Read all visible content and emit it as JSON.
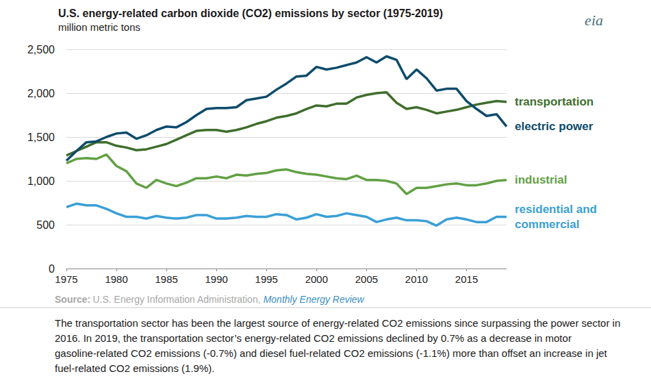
{
  "chart_data": {
    "type": "line",
    "title": "U.S. energy-related carbon dioxide (CO2) emissions by sector (1975-2019)",
    "subtitle": "million metric tons",
    "logo": "eia",
    "source_label": "Source:",
    "source": "U.S. Energy Information Administration,",
    "source_link": "Monthly Energy Review",
    "caption": "The transportation sector has been the largest source of energy-related CO2 emissions since surpassing the power sector in 2016. In 2019, the transportation sector’s energy-related CO2 emissions declined by 0.7% as a decrease in motor gasoline-related CO2 emissions (-0.7%) and diesel fuel-related CO2 emissions (-1.1%) more than offset an increase in jet fuel-related CO2 emissions (1.9%).",
    "x": [
      1975,
      1976,
      1977,
      1978,
      1979,
      1980,
      1981,
      1982,
      1983,
      1984,
      1985,
      1986,
      1987,
      1988,
      1989,
      1990,
      1991,
      1992,
      1993,
      1994,
      1995,
      1996,
      1997,
      1998,
      1999,
      2000,
      2001,
      2002,
      2003,
      2004,
      2005,
      2006,
      2007,
      2008,
      2009,
      2010,
      2011,
      2012,
      2013,
      2014,
      2015,
      2016,
      2017,
      2018,
      2019
    ],
    "series": [
      {
        "name": "transportation",
        "color": "#3f6e2c",
        "values": [
          1290,
          1340,
          1390,
          1440,
          1440,
          1400,
          1380,
          1350,
          1360,
          1390,
          1420,
          1470,
          1520,
          1570,
          1580,
          1580,
          1560,
          1580,
          1610,
          1650,
          1680,
          1720,
          1740,
          1770,
          1820,
          1860,
          1850,
          1880,
          1880,
          1950,
          1980,
          2000,
          2010,
          1890,
          1820,
          1840,
          1810,
          1770,
          1790,
          1810,
          1840,
          1870,
          1890,
          1910,
          1900
        ]
      },
      {
        "name": "electric power",
        "color": "#0d4b6c",
        "values": [
          1230,
          1340,
          1440,
          1450,
          1500,
          1540,
          1550,
          1480,
          1520,
          1580,
          1620,
          1610,
          1670,
          1750,
          1820,
          1830,
          1830,
          1840,
          1920,
          1940,
          1960,
          2040,
          2110,
          2190,
          2200,
          2300,
          2270,
          2290,
          2320,
          2350,
          2410,
          2350,
          2420,
          2380,
          2160,
          2270,
          2170,
          2030,
          2050,
          2050,
          1910,
          1820,
          1740,
          1760,
          1620
        ]
      },
      {
        "name": "industrial",
        "color": "#62a044",
        "values": [
          1200,
          1250,
          1260,
          1250,
          1300,
          1170,
          1110,
          970,
          920,
          1010,
          970,
          940,
          980,
          1030,
          1030,
          1050,
          1030,
          1070,
          1060,
          1080,
          1090,
          1120,
          1130,
          1100,
          1080,
          1070,
          1050,
          1030,
          1020,
          1060,
          1010,
          1010,
          1000,
          970,
          850,
          920,
          920,
          940,
          960,
          970,
          950,
          950,
          970,
          1000,
          1010
        ]
      },
      {
        "name": "residential and\ncommercial",
        "color": "#3a9fd6",
        "values": [
          700,
          740,
          720,
          720,
          680,
          630,
          590,
          590,
          570,
          600,
          580,
          570,
          580,
          610,
          610,
          570,
          570,
          580,
          600,
          590,
          590,
          620,
          610,
          560,
          580,
          620,
          590,
          600,
          630,
          610,
          590,
          530,
          560,
          580,
          550,
          550,
          540,
          490,
          560,
          580,
          560,
          530,
          530,
          590,
          590
        ]
      }
    ],
    "xlim": [
      1975,
      2019
    ],
    "xticks": [
      1975,
      1980,
      1985,
      1990,
      1995,
      2000,
      2005,
      2010,
      2015
    ],
    "ylim": [
      0,
      2500
    ],
    "yticks": [
      0,
      500,
      {
        "value": 1000,
        "label": "1,000"
      },
      {
        "value": 1500,
        "label": "1,500"
      },
      {
        "value": 2000,
        "label": "2,000"
      },
      {
        "value": 2500,
        "label": "2,500"
      }
    ],
    "grid": true
  }
}
